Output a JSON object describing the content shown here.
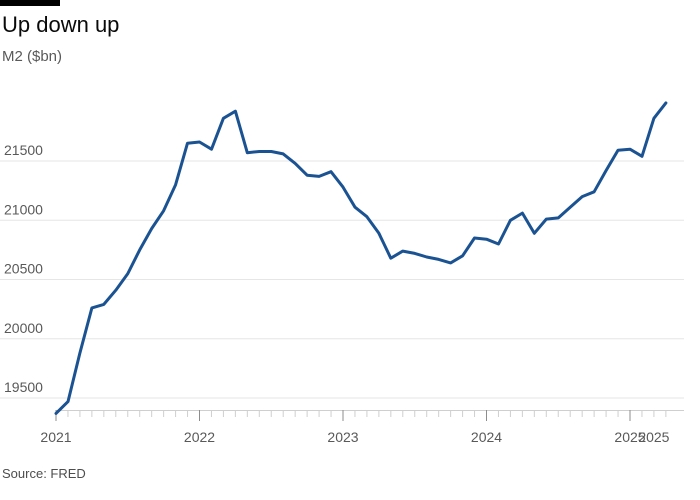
{
  "header": {
    "title": "Up down up",
    "subtitle": "M2 ($bn)"
  },
  "footer": {
    "source": "Source: FRED"
  },
  "colors": {
    "line": "#1b5392",
    "grid": "#e6e6e6",
    "axis": "#cfcfcf"
  },
  "chart_data": {
    "type": "line",
    "title": "Up down up",
    "ylabel": "M2 ($bn)",
    "xlabel": "",
    "ylim": [
      19350,
      22100
    ],
    "xlim": [
      "2021-01",
      "2025-03"
    ],
    "y_ticks": [
      19500,
      20000,
      20500,
      21000,
      21500
    ],
    "x_ticks": [
      {
        "label": "2021",
        "date": "2021-01"
      },
      {
        "label": "2022",
        "date": "2022-01"
      },
      {
        "label": "2023",
        "date": "2023-01"
      },
      {
        "label": "2024",
        "date": "2024-01"
      },
      {
        "label": "2025",
        "date": "2025-01"
      },
      {
        "label": "2025",
        "date": "2025-03"
      }
    ],
    "grid": true,
    "legend": "none",
    "series": [
      {
        "x": [
          "2021-01",
          "2021-02",
          "2021-03",
          "2021-04",
          "2021-05",
          "2021-06",
          "2021-07",
          "2021-08",
          "2021-09",
          "2021-10",
          "2021-11",
          "2021-12",
          "2022-01",
          "2022-02",
          "2022-03",
          "2022-04",
          "2022-05",
          "2022-06",
          "2022-07",
          "2022-08",
          "2022-09",
          "2022-10",
          "2022-11",
          "2022-12",
          "2023-01",
          "2023-02",
          "2023-03",
          "2023-04",
          "2023-05",
          "2023-06",
          "2023-07",
          "2023-08",
          "2023-09",
          "2023-10",
          "2023-11",
          "2023-12",
          "2024-01",
          "2024-02",
          "2024-03",
          "2024-04",
          "2024-05",
          "2024-06",
          "2024-07",
          "2024-08",
          "2024-09",
          "2024-10",
          "2024-11",
          "2024-12",
          "2025-01",
          "2025-02",
          "2025-03",
          "2025-04",
          "2025-05"
        ],
        "values": [
          19370,
          19470,
          19880,
          20260,
          20290,
          20410,
          20550,
          20750,
          20930,
          21080,
          21300,
          21650,
          21660,
          21600,
          21860,
          21920,
          21570,
          21580,
          21580,
          21560,
          21480,
          21380,
          21370,
          21410,
          21280,
          21110,
          21030,
          20890,
          20680,
          20740,
          20720,
          20690,
          20670,
          20640,
          20700,
          20850,
          20840,
          20800,
          21000,
          21060,
          20890,
          21010,
          21020,
          21110,
          21200,
          21240,
          21420,
          21590,
          21600,
          21540,
          21860,
          21990,
          null
        ]
      }
    ]
  }
}
